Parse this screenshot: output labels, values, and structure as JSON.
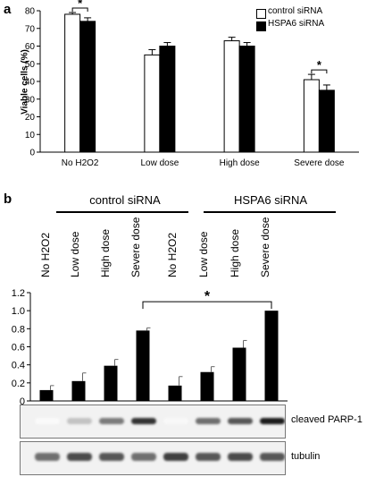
{
  "panel_a": {
    "letter": "a",
    "chart_data": {
      "type": "bar",
      "categories": [
        "No H2O2",
        "Low dose",
        "High dose",
        "Severe dose"
      ],
      "series": [
        {
          "name": "control siRNA",
          "values": [
            78,
            55,
            63,
            41
          ],
          "errors": [
            1,
            3,
            2,
            3
          ],
          "color": "#ffffff"
        },
        {
          "name": "HSPA6 siRNA",
          "values": [
            74,
            60,
            60,
            35
          ],
          "errors": [
            2,
            2,
            2,
            3
          ],
          "color": "#000000"
        }
      ],
      "ylabel": "Viable cells (%)",
      "ylim": [
        0,
        80
      ],
      "yticks": [
        "0",
        "10",
        "20",
        "30",
        "40",
        "50",
        "60",
        "70",
        "80"
      ],
      "significance": [
        {
          "category_index": 0,
          "label": "*"
        },
        {
          "category_index": 3,
          "label": "*"
        }
      ],
      "legend_position": "top-right"
    }
  },
  "panel_b": {
    "letter": "b",
    "groups": [
      "control siRNA",
      "HSPA6 siRNA"
    ],
    "column_headers": [
      "No H2O2",
      "Low  dose",
      "High dose",
      "Severe dose",
      "No H2O2",
      "Low  dose",
      "High dose",
      "Severe dose"
    ],
    "chart_data": {
      "type": "bar",
      "categories": [
        "No H2O2",
        "Low dose",
        "High dose",
        "Severe dose",
        "No H2O2",
        "Low dose",
        "High dose",
        "Severe dose"
      ],
      "values": [
        0.12,
        0.22,
        0.39,
        0.78,
        0.17,
        0.32,
        0.59,
        1.0
      ],
      "errors": [
        0.05,
        0.09,
        0.07,
        0.03,
        0.1,
        0.06,
        0.08,
        0.0
      ],
      "ylim": [
        0,
        1.2
      ],
      "yticks": [
        "0",
        "0.2",
        "0.4",
        "0.6",
        "0.8",
        "1.0",
        "1.2"
      ],
      "significance_label": "*",
      "significance_between": [
        3,
        7
      ]
    },
    "blots": [
      {
        "label": "cleaved PARP-1",
        "intensities": [
          0.02,
          0.25,
          0.55,
          0.85,
          0.03,
          0.6,
          0.7,
          0.95
        ]
      },
      {
        "label": "tubulin",
        "intensities": [
          0.6,
          0.75,
          0.7,
          0.6,
          0.8,
          0.7,
          0.75,
          0.7
        ]
      }
    ]
  }
}
